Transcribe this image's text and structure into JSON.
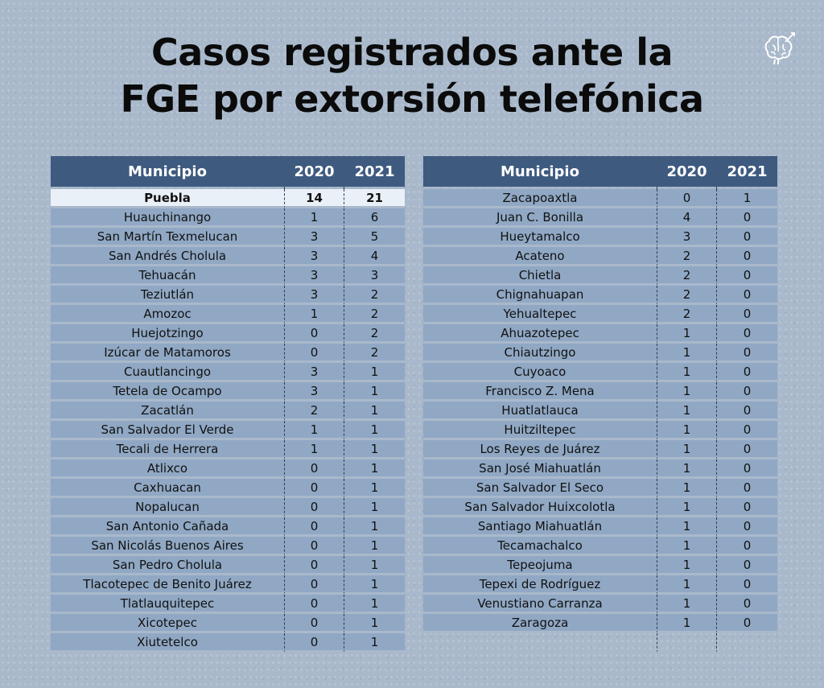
{
  "title": {
    "line1": "Casos registrados ante la",
    "line2": "FGE por extorsión telefónica"
  },
  "logo_icon": "brain-icon",
  "colors": {
    "background": "#a9b9cb",
    "header": "#3e5a7f",
    "row": "#90a8c4",
    "highlight_row": "#eaf0f7"
  },
  "table_left": {
    "headers": [
      "Municipio",
      "2020",
      "2021"
    ],
    "rows": [
      [
        "Puebla",
        "14",
        "21"
      ],
      [
        "Huauchinango",
        "1",
        "6"
      ],
      [
        "San Martín Texmelucan",
        "3",
        "5"
      ],
      [
        "San Andrés Cholula",
        "3",
        "4"
      ],
      [
        "Tehuacán",
        "3",
        "3"
      ],
      [
        "Teziutlán",
        "3",
        "2"
      ],
      [
        "Amozoc",
        "1",
        "2"
      ],
      [
        "Huejotzingo",
        "0",
        "2"
      ],
      [
        "Izúcar de Matamoros",
        "0",
        "2"
      ],
      [
        "Cuautlancingo",
        "3",
        "1"
      ],
      [
        "Tetela de Ocampo",
        "3",
        "1"
      ],
      [
        "Zacatlán",
        "2",
        "1"
      ],
      [
        "San Salvador El Verde",
        "1",
        "1"
      ],
      [
        "Tecali de Herrera",
        "1",
        "1"
      ],
      [
        "Atlixco",
        "0",
        "1"
      ],
      [
        "Caxhuacan",
        "0",
        "1"
      ],
      [
        "Nopalucan",
        "0",
        "1"
      ],
      [
        "San Antonio Cañada",
        "0",
        "1"
      ],
      [
        "San Nicolás Buenos Aires",
        "0",
        "1"
      ],
      [
        "San Pedro Cholula",
        "0",
        "1"
      ],
      [
        "Tlacotepec de Benito Juárez",
        "0",
        "1"
      ],
      [
        "Tlatlauquitepec",
        "0",
        "1"
      ],
      [
        "Xicotepec",
        "0",
        "1"
      ],
      [
        "Xiutetelco",
        "0",
        "1"
      ]
    ]
  },
  "table_right": {
    "headers": [
      "Municipio",
      "2020",
      "2021"
    ],
    "rows": [
      [
        "Zacapoaxtla",
        "0",
        "1"
      ],
      [
        "Juan C. Bonilla",
        "4",
        "0"
      ],
      [
        "Hueytamalco",
        "3",
        "0"
      ],
      [
        "Acateno",
        "2",
        "0"
      ],
      [
        "Chietla",
        "2",
        "0"
      ],
      [
        "Chignahuapan",
        "2",
        "0"
      ],
      [
        "Yehualtepec",
        "2",
        "0"
      ],
      [
        "Ahuazotepec",
        "1",
        "0"
      ],
      [
        "Chiautzingo",
        "1",
        "0"
      ],
      [
        "Cuyoaco",
        "1",
        "0"
      ],
      [
        "Francisco Z. Mena",
        "1",
        "0"
      ],
      [
        "Huatlatlauca",
        "1",
        "0"
      ],
      [
        "Huitziltepec",
        "1",
        "0"
      ],
      [
        "Los Reyes de Juárez",
        "1",
        "0"
      ],
      [
        "San José Miahuatlán",
        "1",
        "0"
      ],
      [
        "San Salvador El Seco",
        "1",
        "0"
      ],
      [
        "San Salvador Huixcolotla",
        "1",
        "0"
      ],
      [
        "Santiago Miahuatlán",
        "1",
        "0"
      ],
      [
        "Tecamachalco",
        "1",
        "0"
      ],
      [
        "Tepeojuma",
        "1",
        "0"
      ],
      [
        "Tepexi de Rodríguez",
        "1",
        "0"
      ],
      [
        "Venustiano Carranza",
        "1",
        "0"
      ],
      [
        "Zaragoza",
        "1",
        "0"
      ]
    ]
  }
}
